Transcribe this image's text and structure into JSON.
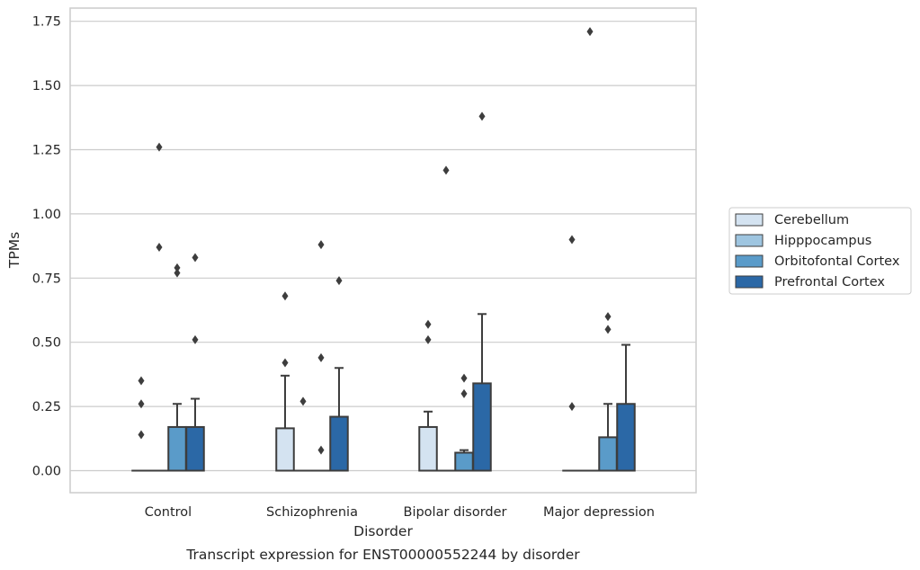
{
  "chart_data": {
    "type": "box",
    "title": "Transcript expression for ENST00000552244 by disorder",
    "xlabel": "Disorder",
    "ylabel": "TPMs",
    "ylim": [
      -0.085,
      1.8
    ],
    "yticks": [
      0.0,
      0.25,
      0.5,
      0.75,
      1.0,
      1.25,
      1.5,
      1.75
    ],
    "ytick_labels": [
      "0.00",
      "0.25",
      "0.50",
      "0.75",
      "1.00",
      "1.25",
      "1.50",
      "1.75"
    ],
    "grid": true,
    "legend_position": "right",
    "categories": [
      "Control",
      "Schizophrenia",
      "Bipolar disorder",
      "Major depression"
    ],
    "series": [
      {
        "name": "Cerebellum",
        "color": "#d4e3f1",
        "boxes": [
          {
            "q1": 0.0,
            "median": 0.0,
            "q3": 0.0,
            "whisker_low": 0.0,
            "whisker_high": 0.0,
            "outliers": [
              0.14,
              0.26,
              0.35
            ]
          },
          {
            "q1": 0.0,
            "median": 0.0,
            "q3": 0.165,
            "whisker_low": 0.0,
            "whisker_high": 0.37,
            "outliers": [
              0.42,
              0.68
            ]
          },
          {
            "q1": 0.0,
            "median": 0.0,
            "q3": 0.17,
            "whisker_low": 0.0,
            "whisker_high": 0.23,
            "outliers": [
              0.51,
              0.57
            ]
          },
          {
            "q1": 0.0,
            "median": 0.0,
            "q3": 0.0,
            "whisker_low": 0.0,
            "whisker_high": 0.0,
            "outliers": [
              0.25,
              0.9
            ]
          }
        ]
      },
      {
        "name": "Hipppocampus",
        "color": "#9ec5e0",
        "boxes": [
          {
            "q1": 0.0,
            "median": 0.0,
            "q3": 0.0,
            "whisker_low": 0.0,
            "whisker_high": 0.0,
            "outliers": [
              0.87,
              1.26
            ]
          },
          {
            "q1": 0.0,
            "median": 0.0,
            "q3": 0.0,
            "whisker_low": 0.0,
            "whisker_high": 0.0,
            "outliers": [
              0.27
            ]
          },
          {
            "q1": 0.0,
            "median": 0.0,
            "q3": 0.0,
            "whisker_low": 0.0,
            "whisker_high": 0.0,
            "outliers": [
              1.17
            ]
          },
          {
            "q1": 0.0,
            "median": 0.0,
            "q3": 0.0,
            "whisker_low": 0.0,
            "whisker_high": 0.0,
            "outliers": [
              1.71
            ]
          }
        ]
      },
      {
        "name": "Orbitofontal Cortex",
        "color": "#5a9bc9",
        "boxes": [
          {
            "q1": 0.0,
            "median": 0.0,
            "q3": 0.17,
            "whisker_low": 0.0,
            "whisker_high": 0.26,
            "outliers": [
              0.77,
              0.79
            ]
          },
          {
            "q1": 0.0,
            "median": 0.0,
            "q3": 0.0,
            "whisker_low": 0.0,
            "whisker_high": 0.0,
            "outliers": [
              0.08,
              0.44,
              0.88
            ]
          },
          {
            "q1": 0.0,
            "median": 0.0,
            "q3": 0.07,
            "whisker_low": 0.0,
            "whisker_high": 0.08,
            "outliers": [
              0.3,
              0.36
            ]
          },
          {
            "q1": 0.0,
            "median": 0.0,
            "q3": 0.13,
            "whisker_low": 0.0,
            "whisker_high": 0.26,
            "outliers": [
              0.55,
              0.6
            ]
          }
        ]
      },
      {
        "name": "Prefrontal Cortex",
        "color": "#2b68a6",
        "boxes": [
          {
            "q1": 0.0,
            "median": 0.0,
            "q3": 0.17,
            "whisker_low": 0.0,
            "whisker_high": 0.28,
            "outliers": [
              0.51,
              0.83
            ]
          },
          {
            "q1": 0.0,
            "median": 0.0,
            "q3": 0.21,
            "whisker_low": 0.0,
            "whisker_high": 0.4,
            "outliers": [
              0.74
            ]
          },
          {
            "q1": 0.0,
            "median": 0.0,
            "q3": 0.34,
            "whisker_low": 0.0,
            "whisker_high": 0.61,
            "outliers": [
              1.38
            ]
          },
          {
            "q1": 0.0,
            "median": 0.0,
            "q3": 0.26,
            "whisker_low": 0.0,
            "whisker_high": 0.49,
            "outliers": []
          }
        ]
      }
    ]
  }
}
